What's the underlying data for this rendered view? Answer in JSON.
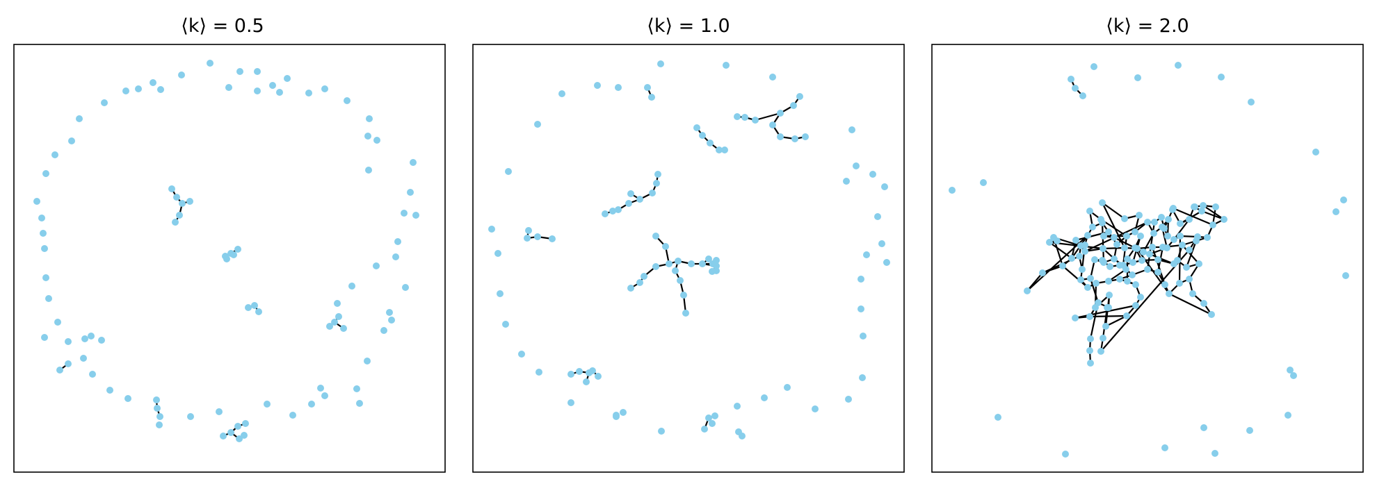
{
  "node_color": "#87CEEB",
  "edge_color": "#000000",
  "panels": [
    {
      "title": "⟨k⟩ = 0.5"
    },
    {
      "title": "⟨k⟩ = 1.0"
    },
    {
      "title": "⟨k⟩ = 2.0"
    }
  ]
}
